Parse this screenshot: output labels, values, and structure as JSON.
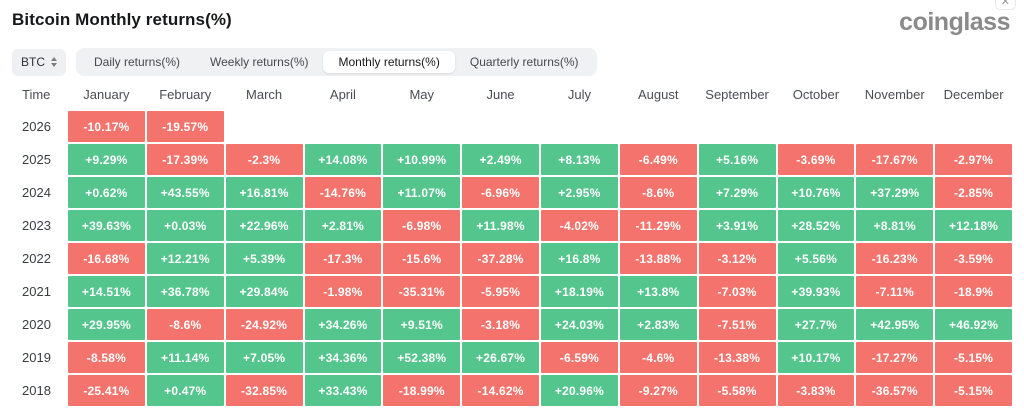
{
  "header": {
    "title": "Bitcoin Monthly returns(%)",
    "logo": "coinglass",
    "close_icon": "✕"
  },
  "toolbar": {
    "symbol_select": {
      "value": "BTC"
    },
    "tabs": [
      {
        "label": "Daily returns(%)",
        "active": false
      },
      {
        "label": "Weekly returns(%)",
        "active": false
      },
      {
        "label": "Monthly returns(%)",
        "active": true
      },
      {
        "label": "Quarterly returns(%)",
        "active": false
      }
    ]
  },
  "colors": {
    "positive": "#54C68D",
    "negative": "#F4736C"
  },
  "chart_data": {
    "type": "table",
    "title": "Bitcoin Monthly returns(%)",
    "columns": [
      "Time",
      "January",
      "February",
      "March",
      "April",
      "May",
      "June",
      "July",
      "August",
      "September",
      "October",
      "November",
      "December"
    ],
    "rows": [
      {
        "year": "2026",
        "values": [
          "-10.17%",
          "-19.57%",
          "",
          "",
          "",
          "",
          "",
          "",
          "",
          "",
          "",
          ""
        ]
      },
      {
        "year": "2025",
        "values": [
          "+9.29%",
          "-17.39%",
          "-2.3%",
          "+14.08%",
          "+10.99%",
          "+2.49%",
          "+8.13%",
          "-6.49%",
          "+5.16%",
          "-3.69%",
          "-17.67%",
          "-2.97%"
        ]
      },
      {
        "year": "2024",
        "values": [
          "+0.62%",
          "+43.55%",
          "+16.81%",
          "-14.76%",
          "+11.07%",
          "-6.96%",
          "+2.95%",
          "-8.6%",
          "+7.29%",
          "+10.76%",
          "+37.29%",
          "-2.85%"
        ]
      },
      {
        "year": "2023",
        "values": [
          "+39.63%",
          "+0.03%",
          "+22.96%",
          "+2.81%",
          "-6.98%",
          "+11.98%",
          "-4.02%",
          "-11.29%",
          "+3.91%",
          "+28.52%",
          "+8.81%",
          "+12.18%"
        ]
      },
      {
        "year": "2022",
        "values": [
          "-16.68%",
          "+12.21%",
          "+5.39%",
          "-17.3%",
          "-15.6%",
          "-37.28%",
          "+16.8%",
          "-13.88%",
          "-3.12%",
          "+5.56%",
          "-16.23%",
          "-3.59%"
        ]
      },
      {
        "year": "2021",
        "values": [
          "+14.51%",
          "+36.78%",
          "+29.84%",
          "-1.98%",
          "-35.31%",
          "-5.95%",
          "+18.19%",
          "+13.8%",
          "-7.03%",
          "+39.93%",
          "-7.11%",
          "-18.9%"
        ]
      },
      {
        "year": "2020",
        "values": [
          "+29.95%",
          "-8.6%",
          "-24.92%",
          "+34.26%",
          "+9.51%",
          "-3.18%",
          "+24.03%",
          "+2.83%",
          "-7.51%",
          "+27.7%",
          "+42.95%",
          "+46.92%"
        ]
      },
      {
        "year": "2019",
        "values": [
          "-8.58%",
          "+11.14%",
          "+7.05%",
          "+34.36%",
          "+52.38%",
          "+26.67%",
          "-6.59%",
          "-4.6%",
          "-13.38%",
          "+10.17%",
          "-17.27%",
          "-5.15%"
        ]
      },
      {
        "year": "2018",
        "values": [
          "-25.41%",
          "+0.47%",
          "-32.85%",
          "+33.43%",
          "-18.99%",
          "-14.62%",
          "+20.96%",
          "-9.27%",
          "-5.58%",
          "-3.83%",
          "-36.57%",
          "-5.15%"
        ]
      }
    ]
  }
}
